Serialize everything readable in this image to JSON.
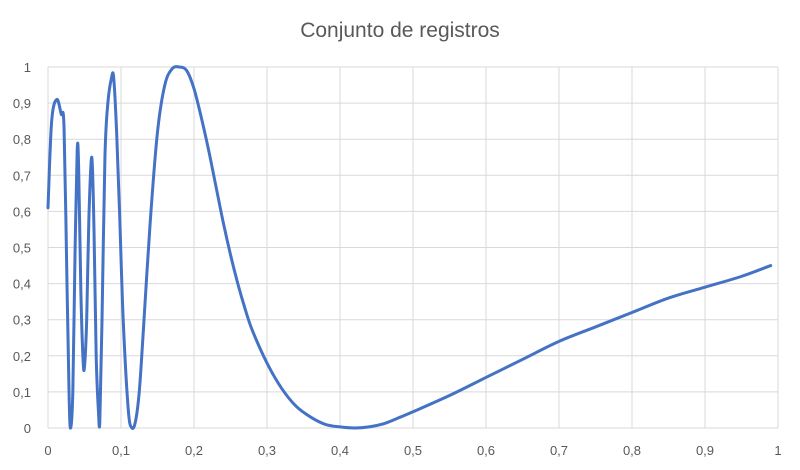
{
  "chart_data": {
    "type": "line",
    "title": "Conjunto de registros",
    "xlabel": "",
    "ylabel": "",
    "xlim": [
      0,
      1
    ],
    "ylim": [
      0,
      1
    ],
    "x_ticks": [
      "0",
      "0,1",
      "0,2",
      "0,3",
      "0,4",
      "0,5",
      "0,6",
      "0,7",
      "0,8",
      "0,9",
      "1"
    ],
    "y_ticks": [
      "0",
      "0,1",
      "0,2",
      "0,3",
      "0,4",
      "0,5",
      "0,6",
      "0,7",
      "0,8",
      "0,9",
      "1"
    ],
    "grid": "vertical-and-horizontal",
    "legend": "none",
    "series": [
      {
        "color": "#4472c4",
        "x": [
          0,
          0.005,
          0.012,
          0.018,
          0.022,
          0.026,
          0.029,
          0.031,
          0.034,
          0.037,
          0.04,
          0.042,
          0.045,
          0.048,
          0.05,
          0.053,
          0.056,
          0.06,
          0.063,
          0.066,
          0.069,
          0.071,
          0.074,
          0.078,
          0.082,
          0.087,
          0.09,
          0.094,
          0.098,
          0.103,
          0.11,
          0.115,
          0.12,
          0.125,
          0.13,
          0.14,
          0.15,
          0.16,
          0.17,
          0.18,
          0.19,
          0.2,
          0.21,
          0.22,
          0.23,
          0.24,
          0.25,
          0.26,
          0.27,
          0.28,
          0.3,
          0.32,
          0.34,
          0.36,
          0.38,
          0.4,
          0.42,
          0.44,
          0.46,
          0.48,
          0.5,
          0.55,
          0.6,
          0.65,
          0.7,
          0.75,
          0.8,
          0.85,
          0.9,
          0.95,
          0.99
        ],
        "y": [
          0.61,
          0.85,
          0.91,
          0.87,
          0.83,
          0.4,
          0.08,
          0.0,
          0.1,
          0.48,
          0.77,
          0.72,
          0.38,
          0.19,
          0.17,
          0.3,
          0.58,
          0.75,
          0.55,
          0.2,
          0.05,
          0.02,
          0.3,
          0.75,
          0.9,
          0.97,
          0.97,
          0.82,
          0.6,
          0.3,
          0.05,
          0.0,
          0.02,
          0.1,
          0.25,
          0.57,
          0.82,
          0.95,
          0.995,
          1.0,
          0.99,
          0.94,
          0.86,
          0.77,
          0.67,
          0.57,
          0.48,
          0.4,
          0.33,
          0.27,
          0.18,
          0.11,
          0.06,
          0.03,
          0.01,
          0.003,
          0.0,
          0.003,
          0.012,
          0.028,
          0.045,
          0.09,
          0.14,
          0.19,
          0.24,
          0.28,
          0.32,
          0.36,
          0.39,
          0.42,
          0.45
        ]
      }
    ]
  }
}
